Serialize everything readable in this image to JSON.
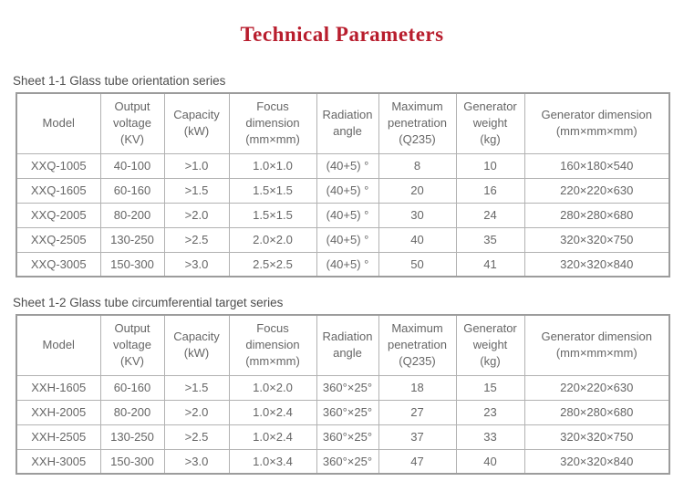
{
  "page": {
    "title": "Technical Parameters"
  },
  "colors": {
    "title_red": "#b81d2d",
    "table_text_gray": "#666666",
    "border_gray": "#b2b2b2",
    "outer_border_gray": "#9c9c9c"
  },
  "sheet1": {
    "caption": "Sheet 1-1 Glass tube orientation series",
    "headers": {
      "model": "Model",
      "voltage": "Output\nvoltage\n(KV)",
      "capacity": "Capacity\n(kW)",
      "focus": "Focus\ndimension\n(mm×mm)",
      "angle": "Radiation\nangle",
      "maxpen": "Maximum\npenetration\n(Q235)",
      "weight": "Generator\nweight\n(kg)",
      "gendim": "Generator dimension\n(mm×mm×mm)"
    },
    "rows": [
      [
        "XXQ-1005",
        "40-100",
        ">1.0",
        "1.0×1.0",
        "(40+5) °",
        "8",
        "10",
        "160×180×540"
      ],
      [
        "XXQ-1605",
        "60-160",
        ">1.5",
        "1.5×1.5",
        "(40+5) °",
        "20",
        "16",
        "220×220×630"
      ],
      [
        "XXQ-2005",
        "80-200",
        ">2.0",
        "1.5×1.5",
        "(40+5) °",
        "30",
        "24",
        "280×280×680"
      ],
      [
        "XXQ-2505",
        "130-250",
        ">2.5",
        "2.0×2.0",
        "(40+5) °",
        "40",
        "35",
        "320×320×750"
      ],
      [
        "XXQ-3005",
        "150-300",
        ">3.0",
        "2.5×2.5",
        "(40+5) °",
        "50",
        "41",
        "320×320×840"
      ]
    ]
  },
  "sheet2": {
    "caption": "Sheet 1-2 Glass tube circumferential target series",
    "headers": {
      "model": "Model",
      "voltage": "Output\nvoltage\n(KV)",
      "capacity": "Capacity\n(kW)",
      "focus": "Focus\ndimension\n(mm×mm)",
      "angle": "Radiation\nangle",
      "maxpen": "Maximum\npenetration\n(Q235)",
      "weight": "Generator\nweight\n(kg)",
      "gendim": "Generator dimension\n(mm×mm×mm)"
    },
    "rows": [
      [
        "XXH-1605",
        "60-160",
        ">1.5",
        "1.0×2.0",
        "360°×25°",
        "18",
        "15",
        "220×220×630"
      ],
      [
        "XXH-2005",
        "80-200",
        ">2.0",
        "1.0×2.4",
        "360°×25°",
        "27",
        "23",
        "280×280×680"
      ],
      [
        "XXH-2505",
        "130-250",
        ">2.5",
        "1.0×2.4",
        "360°×25°",
        "37",
        "33",
        "320×320×750"
      ],
      [
        "XXH-3005",
        "150-300",
        ">3.0",
        "1.0×3.4",
        "360°×25°",
        "47",
        "40",
        "320×320×840"
      ]
    ]
  }
}
